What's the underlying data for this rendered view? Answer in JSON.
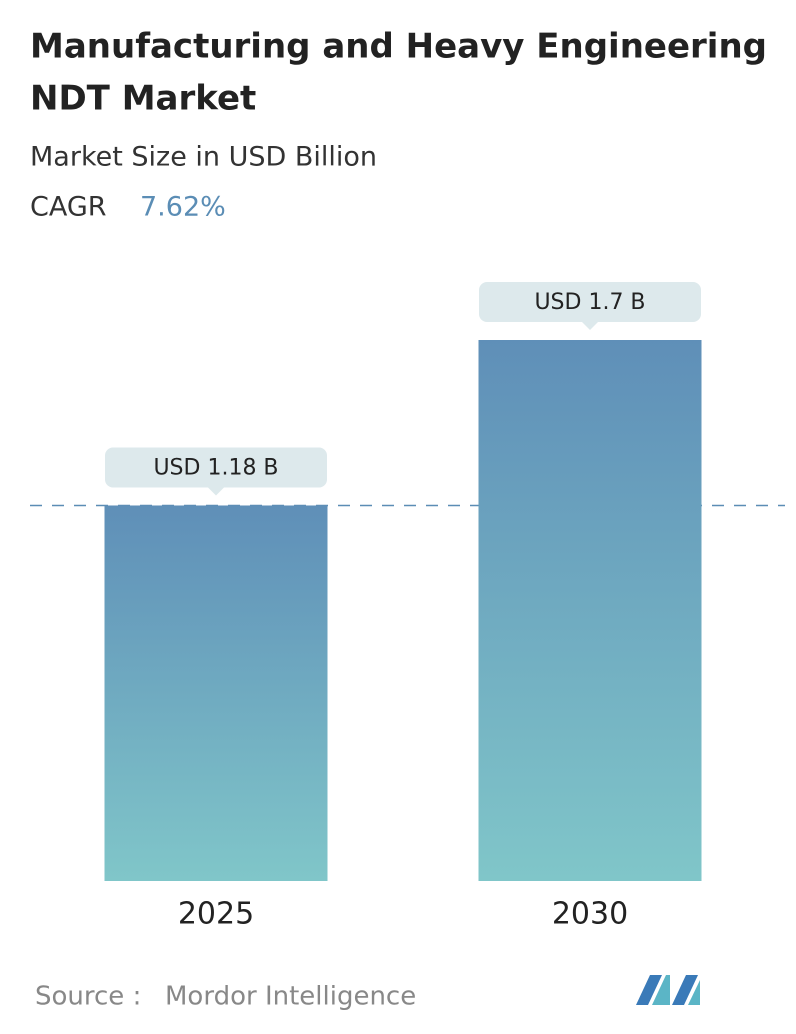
{
  "chart_data": {
    "type": "bar",
    "title": [
      "Manufacturing and Heavy Engineering",
      "NDT Market"
    ],
    "subtitle": "Market Size in USD Billion",
    "cagr_label": "CAGR",
    "cagr": "7.62%",
    "categories": [
      "2025",
      "2030"
    ],
    "values": [
      1.18,
      1.7
    ],
    "value_labels": [
      "USD 1.18 B",
      "USD 1.7 B"
    ],
    "gradient": {
      "top": "#5f8fb8",
      "bottom": "#80c6c9"
    },
    "source_label": "Source :",
    "source": "Mordor Intelligence"
  }
}
